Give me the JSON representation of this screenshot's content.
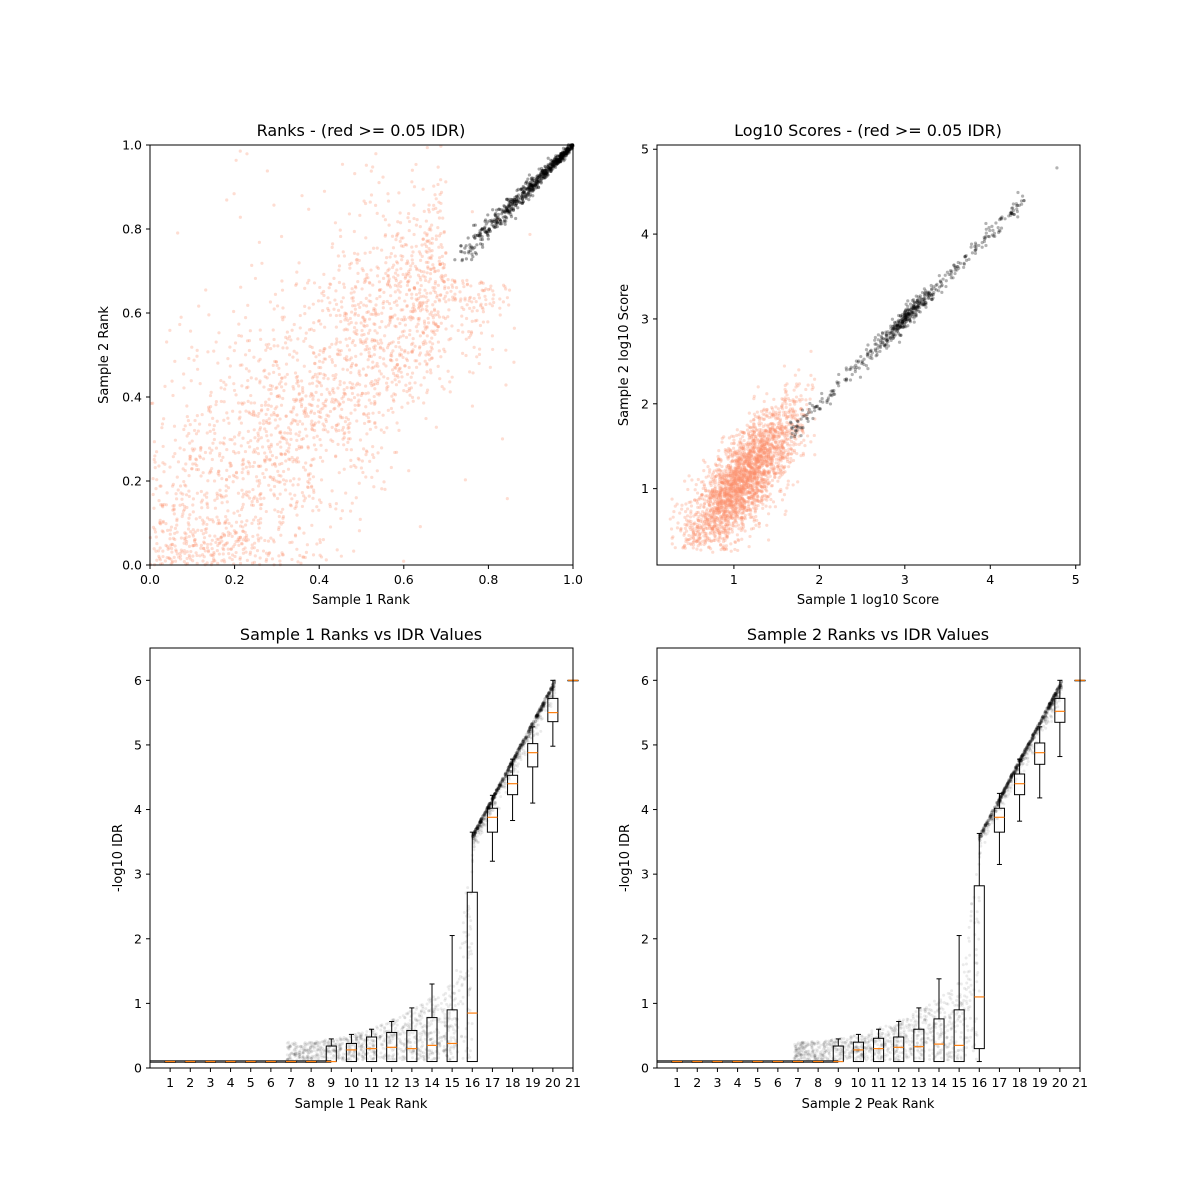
{
  "figure": {
    "background": "#ffffff"
  },
  "colors": {
    "black_points": "#000000",
    "red_points": "#fc8d6a",
    "median": "#ff7f0e",
    "box": "#000000"
  },
  "chart_data": [
    {
      "type": "scatter",
      "title": "Ranks - (red >= 0.05 IDR)",
      "xlabel": "Sample 1 Rank",
      "ylabel": "Sample 2 Rank",
      "xlim": [
        0,
        1
      ],
      "ylim": [
        0,
        1
      ],
      "xticks": [
        "0.0",
        "0.2",
        "0.4",
        "0.6",
        "0.8",
        "1.0"
      ],
      "yticks": [
        "0.0",
        "0.2",
        "0.4",
        "0.6",
        "0.8",
        "1.0"
      ],
      "grid": false,
      "series": [
        {
          "color": "red",
          "description_count": 2800,
          "region": "spread across lower-left to 0.85",
          "sample_points": [
            [
              0.05,
              0.02
            ],
            [
              0.12,
              0.35
            ],
            [
              0.3,
              0.2
            ],
            [
              0.45,
              0.5
            ],
            [
              0.6,
              0.55
            ],
            [
              0.7,
              0.75
            ],
            [
              0.2,
              0.7
            ],
            [
              0.55,
              0.1
            ]
          ]
        },
        {
          "color": "black",
          "description_count": 600,
          "region": "diagonal from (0.71,0.71) to (1.0,1.0)",
          "sample_points": [
            [
              0.71,
              0.71
            ],
            [
              0.8,
              0.81
            ],
            [
              0.86,
              0.86
            ],
            [
              0.9,
              0.92
            ],
            [
              0.95,
              0.96
            ],
            [
              1.0,
              1.0
            ]
          ]
        }
      ]
    },
    {
      "type": "scatter",
      "title": "Log10 Scores - (red >= 0.05 IDR)",
      "xlabel": "Sample 1 log10 Score",
      "ylabel": "Sample 2 log10 Score",
      "xlim": [
        0.1,
        5.05
      ],
      "ylim": [
        0.1,
        5.05
      ],
      "xticks": [
        "1",
        "2",
        "3",
        "4",
        "5"
      ],
      "yticks": [
        "1",
        "2",
        "3",
        "4",
        "5"
      ],
      "grid": false,
      "series": [
        {
          "color": "red",
          "description_count": 2800,
          "region": "cloud centered near (1.1,1.1)",
          "sample_points": [
            [
              0.7,
              0.8
            ],
            [
              1.0,
              1.0
            ],
            [
              1.2,
              1.3
            ],
            [
              1.5,
              1.5
            ],
            [
              0.5,
              0.6
            ],
            [
              1.7,
              1.8
            ]
          ]
        },
        {
          "color": "black",
          "description_count": 600,
          "region": "diagonal from (1.6,1.6) to (4.4,4.4)",
          "sample_points": [
            [
              1.7,
              1.7
            ],
            [
              2.0,
              2.0
            ],
            [
              2.9,
              2.9
            ],
            [
              3.0,
              3.0
            ],
            [
              3.5,
              3.5
            ],
            [
              4.4,
              4.4
            ],
            [
              4.8,
              4.8
            ]
          ]
        }
      ]
    },
    {
      "type": "box",
      "title": "Sample 1 Ranks vs IDR Values",
      "xlabel": "Sample 1 Peak Rank",
      "ylabel": "-log10 IDR",
      "xlim": [
        0,
        21
      ],
      "ylim": [
        0,
        6.5
      ],
      "xticks": [
        "1",
        "2",
        "3",
        "4",
        "5",
        "6",
        "7",
        "8",
        "9",
        "10",
        "11",
        "12",
        "13",
        "14",
        "15",
        "16",
        "17",
        "18",
        "19",
        "20",
        "21"
      ],
      "yticks": [
        "0",
        "1",
        "2",
        "3",
        "4",
        "5",
        "6"
      ],
      "boxes": [
        {
          "q1": 0.1,
          "median": 0.1,
          "q3": 0.1,
          "whislo": 0.1,
          "whishi": 0.1
        },
        {
          "q1": 0.1,
          "median": 0.1,
          "q3": 0.1,
          "whislo": 0.1,
          "whishi": 0.1
        },
        {
          "q1": 0.1,
          "median": 0.1,
          "q3": 0.1,
          "whislo": 0.1,
          "whishi": 0.1
        },
        {
          "q1": 0.1,
          "median": 0.1,
          "q3": 0.1,
          "whislo": 0.1,
          "whishi": 0.1
        },
        {
          "q1": 0.1,
          "median": 0.1,
          "q3": 0.1,
          "whislo": 0.1,
          "whishi": 0.1
        },
        {
          "q1": 0.1,
          "median": 0.1,
          "q3": 0.1,
          "whislo": 0.1,
          "whishi": 0.1
        },
        {
          "q1": 0.1,
          "median": 0.1,
          "q3": 0.1,
          "whislo": 0.1,
          "whishi": 0.1
        },
        {
          "q1": 0.1,
          "median": 0.1,
          "q3": 0.1,
          "whislo": 0.1,
          "whishi": 0.1
        },
        {
          "q1": 0.1,
          "median": 0.1,
          "q3": 0.34,
          "whislo": 0.1,
          "whishi": 0.45
        },
        {
          "q1": 0.1,
          "median": 0.28,
          "q3": 0.38,
          "whislo": 0.1,
          "whishi": 0.52
        },
        {
          "q1": 0.1,
          "median": 0.3,
          "q3": 0.48,
          "whislo": 0.1,
          "whishi": 0.6
        },
        {
          "q1": 0.1,
          "median": 0.32,
          "q3": 0.55,
          "whislo": 0.1,
          "whishi": 0.72
        },
        {
          "q1": 0.1,
          "median": 0.3,
          "q3": 0.58,
          "whislo": 0.1,
          "whishi": 0.93
        },
        {
          "q1": 0.1,
          "median": 0.35,
          "q3": 0.78,
          "whislo": 0.1,
          "whishi": 1.3
        },
        {
          "q1": 0.1,
          "median": 0.38,
          "q3": 0.9,
          "whislo": 0.1,
          "whishi": 2.05
        },
        {
          "q1": 0.1,
          "median": 0.85,
          "q3": 2.72,
          "whislo": 0.1,
          "whishi": 3.65
        },
        {
          "q1": 3.65,
          "median": 3.88,
          "q3": 4.02,
          "whislo": 3.2,
          "whishi": 4.22
        },
        {
          "q1": 4.23,
          "median": 4.4,
          "q3": 4.53,
          "whislo": 3.83,
          "whishi": 4.78
        },
        {
          "q1": 4.66,
          "median": 4.88,
          "q3": 5.02,
          "whislo": 4.1,
          "whishi": 5.28
        },
        {
          "q1": 5.36,
          "median": 5.5,
          "q3": 5.72,
          "whislo": 4.98,
          "whishi": 6.0
        },
        {
          "q1": 6.0,
          "median": 6.0,
          "q3": 6.0,
          "whislo": 6.0,
          "whishi": 6.0
        }
      ]
    },
    {
      "type": "box",
      "title": "Sample 2 Ranks vs IDR Values",
      "xlabel": "Sample 2 Peak Rank",
      "ylabel": "-log10 IDR",
      "xlim": [
        0,
        21
      ],
      "ylim": [
        0,
        6.5
      ],
      "xticks": [
        "1",
        "2",
        "3",
        "4",
        "5",
        "6",
        "7",
        "8",
        "9",
        "10",
        "11",
        "12",
        "13",
        "14",
        "15",
        "16",
        "17",
        "18",
        "19",
        "20",
        "21"
      ],
      "yticks": [
        "0",
        "1",
        "2",
        "3",
        "4",
        "5",
        "6"
      ],
      "boxes": [
        {
          "q1": 0.1,
          "median": 0.1,
          "q3": 0.1,
          "whislo": 0.1,
          "whishi": 0.1
        },
        {
          "q1": 0.1,
          "median": 0.1,
          "q3": 0.1,
          "whislo": 0.1,
          "whishi": 0.1
        },
        {
          "q1": 0.1,
          "median": 0.1,
          "q3": 0.1,
          "whislo": 0.1,
          "whishi": 0.1
        },
        {
          "q1": 0.1,
          "median": 0.1,
          "q3": 0.1,
          "whislo": 0.1,
          "whishi": 0.1
        },
        {
          "q1": 0.1,
          "median": 0.1,
          "q3": 0.1,
          "whislo": 0.1,
          "whishi": 0.1
        },
        {
          "q1": 0.1,
          "median": 0.1,
          "q3": 0.1,
          "whislo": 0.1,
          "whishi": 0.1
        },
        {
          "q1": 0.1,
          "median": 0.1,
          "q3": 0.1,
          "whislo": 0.1,
          "whishi": 0.1
        },
        {
          "q1": 0.1,
          "median": 0.1,
          "q3": 0.1,
          "whislo": 0.1,
          "whishi": 0.1
        },
        {
          "q1": 0.1,
          "median": 0.1,
          "q3": 0.34,
          "whislo": 0.1,
          "whishi": 0.45
        },
        {
          "q1": 0.1,
          "median": 0.28,
          "q3": 0.4,
          "whislo": 0.1,
          "whishi": 0.52
        },
        {
          "q1": 0.1,
          "median": 0.3,
          "q3": 0.46,
          "whislo": 0.1,
          "whishi": 0.6
        },
        {
          "q1": 0.1,
          "median": 0.32,
          "q3": 0.48,
          "whislo": 0.1,
          "whishi": 0.72
        },
        {
          "q1": 0.1,
          "median": 0.33,
          "q3": 0.6,
          "whislo": 0.1,
          "whishi": 0.93
        },
        {
          "q1": 0.1,
          "median": 0.37,
          "q3": 0.76,
          "whislo": 0.1,
          "whishi": 1.38
        },
        {
          "q1": 0.1,
          "median": 0.35,
          "q3": 0.9,
          "whislo": 0.1,
          "whishi": 2.05
        },
        {
          "q1": 0.3,
          "median": 1.1,
          "q3": 2.82,
          "whislo": 0.1,
          "whishi": 3.63
        },
        {
          "q1": 3.65,
          "median": 3.88,
          "q3": 4.02,
          "whislo": 3.15,
          "whishi": 4.25
        },
        {
          "q1": 4.23,
          "median": 4.4,
          "q3": 4.55,
          "whislo": 3.82,
          "whishi": 4.78
        },
        {
          "q1": 4.7,
          "median": 4.88,
          "q3": 5.03,
          "whislo": 4.18,
          "whishi": 5.28
        },
        {
          "q1": 5.35,
          "median": 5.52,
          "q3": 5.72,
          "whislo": 4.82,
          "whishi": 6.0
        },
        {
          "q1": 6.0,
          "median": 6.0,
          "q3": 6.0,
          "whislo": 6.0,
          "whishi": 6.0
        }
      ]
    }
  ]
}
